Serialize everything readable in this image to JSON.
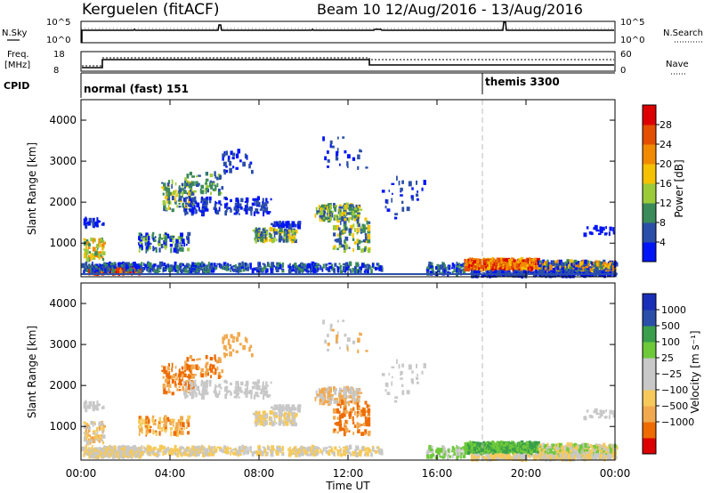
{
  "header": {
    "station": "Kerguelen (fitACF)",
    "beam_info": "Beam 10  12/Aug/2016 - 13/Aug/2016"
  },
  "top_panel": {
    "nsky_label": "N.Sky",
    "nsky_tick_top": "10^5",
    "nsky_tick_bottom": "10^0",
    "nsearch_label": "N.Search",
    "nsearch_tick_top": "10^5",
    "nsearch_tick_bottom": "10^0",
    "freq_label_1": "Freq.",
    "freq_label_2": "[MHz]",
    "freq_tick_top": "18",
    "freq_tick_bottom": "8",
    "nave_label": "Nave",
    "nave_tick_top": "60",
    "nave_tick_bottom": "0",
    "cpid_label": "CPID",
    "cpid_1": "normal (fast) 151",
    "cpid_2": "themis 3300"
  },
  "colors": {
    "power": [
      "#0015f5",
      "#2b4ea8",
      "#3a8a5a",
      "#9ccb3a",
      "#f4c200",
      "#f28a00",
      "#e34e00",
      "#dd0000"
    ],
    "velocity": [
      "#dd0000",
      "#ee6b00",
      "#f1a94f",
      "#f6c95a",
      "#c8c8c8",
      "#c8c8c8",
      "#6ec93a",
      "#3a9e4c",
      "#2b4ea8",
      "#1a2fb8"
    ]
  },
  "chart_data": [
    {
      "type": "heatmap",
      "name": "power",
      "xlabel": "",
      "ylabel": "Slant Range [km]",
      "y_ticks": [
        "1000",
        "2000",
        "3000",
        "4000"
      ],
      "ylim": [
        180,
        4500
      ],
      "xlim_hours": [
        0,
        24
      ],
      "colorbar_label": "Power [dB]",
      "colorbar_ticks": [
        "4",
        "8",
        "12",
        "16",
        "20",
        "24",
        "28"
      ],
      "colorbar_range": [
        0,
        32
      ]
    },
    {
      "type": "heatmap",
      "name": "velocity",
      "xlabel": "Time UT",
      "ylabel": "Slant Range [km]",
      "x_ticks": [
        "00:00",
        "04:00",
        "08:00",
        "12:00",
        "16:00",
        "20:00",
        "00:00"
      ],
      "y_ticks": [
        "1000",
        "2000",
        "3000",
        "4000"
      ],
      "ylim": [
        180,
        4500
      ],
      "xlim_hours": [
        0,
        24
      ],
      "colorbar_label": "Velocity [m s⁻¹]",
      "colorbar_ticks": [
        "1000",
        "500",
        "100",
        "25",
        "−25",
        "−100",
        "−500",
        "−1000"
      ]
    }
  ]
}
